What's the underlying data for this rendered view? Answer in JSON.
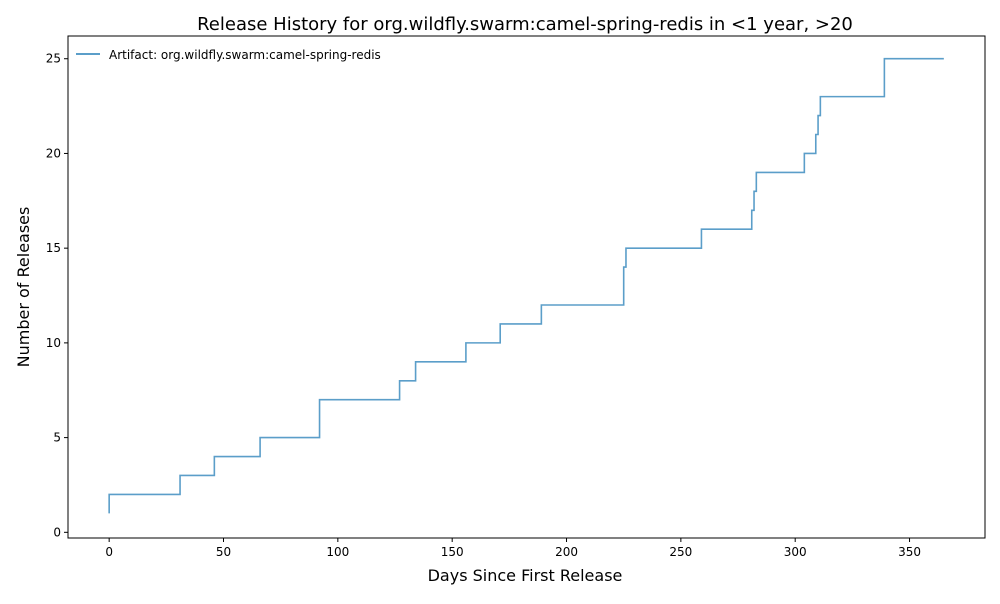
{
  "chart_data": {
    "type": "line",
    "title": "Release History for org.wildfly.swarm:camel-spring-redis in <1 year, >20",
    "xlabel": "Days Since First Release",
    "ylabel": "Number of Releases",
    "xlim": [
      -18,
      383
    ],
    "ylim": [
      -0.3,
      26.2
    ],
    "xticks": [
      0,
      50,
      100,
      150,
      200,
      250,
      300,
      350
    ],
    "yticks": [
      0,
      5,
      10,
      15,
      20,
      25
    ],
    "grid": false,
    "legend_position": "top-left",
    "color": "#5b9ec9",
    "step": "post",
    "series": [
      {
        "name": "Artifact: org.wildfly.swarm:camel-spring-redis",
        "x": [
          0,
          0,
          31,
          46,
          66,
          92,
          127,
          134,
          156,
          171,
          189,
          225,
          226,
          259,
          281,
          282,
          283,
          304,
          309,
          310,
          311,
          339,
          365
        ],
        "y": [
          1,
          2,
          3,
          4,
          5,
          7,
          8,
          9,
          10,
          11,
          12,
          14,
          15,
          16,
          17,
          18,
          19,
          20,
          21,
          22,
          23,
          25,
          25
        ]
      }
    ]
  }
}
